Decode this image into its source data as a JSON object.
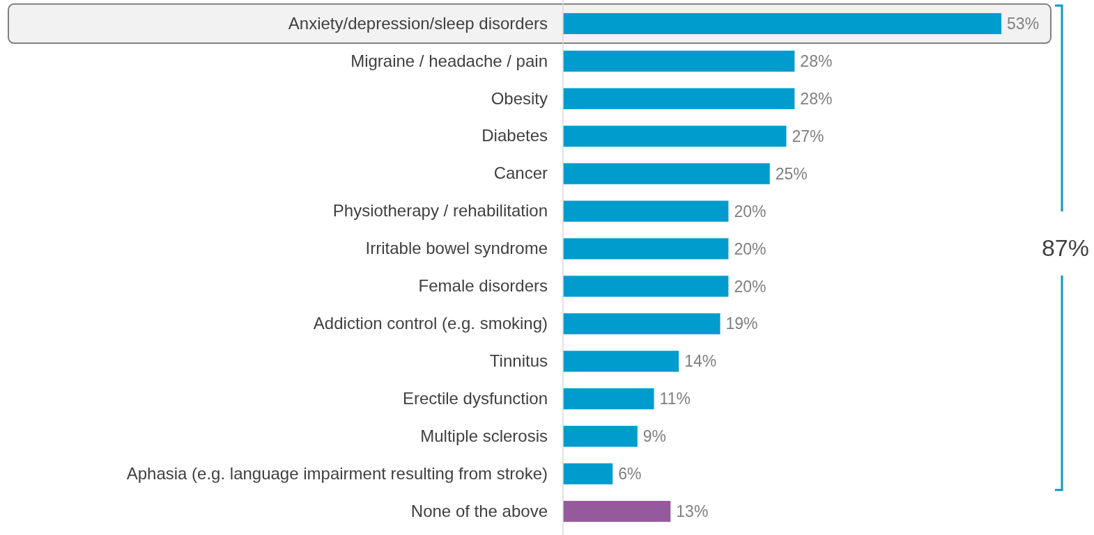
{
  "chart_data": {
    "type": "bar",
    "orientation": "horizontal",
    "tick_labels": "y",
    "categories": [
      "Anxiety/depression/sleep disorders",
      "Migraine / headache / pain",
      "Obesity",
      "Diabetes",
      "Cancer",
      "Physiotherapy / rehabilitation",
      "Irritable bowel syndrome",
      "Female disorders",
      "Addiction control (e.g. smoking)",
      "Tinnitus",
      "Erectile dysfunction",
      "Multiple sclerosis",
      "Aphasia (e.g. language impairment resulting from stroke)",
      "None of the above"
    ],
    "values": [
      53,
      28,
      28,
      27,
      25,
      20,
      20,
      20,
      19,
      14,
      11,
      9,
      6,
      13
    ],
    "value_labels": [
      "53%",
      "28%",
      "28%",
      "27%",
      "25%",
      "20%",
      "20%",
      "20%",
      "19%",
      "14%",
      "11%",
      "9%",
      "6%",
      "13%"
    ],
    "colors": [
      "#009ccd",
      "#009ccd",
      "#009ccd",
      "#009ccd",
      "#009ccd",
      "#009ccd",
      "#009ccd",
      "#009ccd",
      "#009ccd",
      "#009ccd",
      "#009ccd",
      "#009ccd",
      "#009ccd",
      "#955a9c"
    ],
    "annotations": [
      "87%"
    ]
  }
}
